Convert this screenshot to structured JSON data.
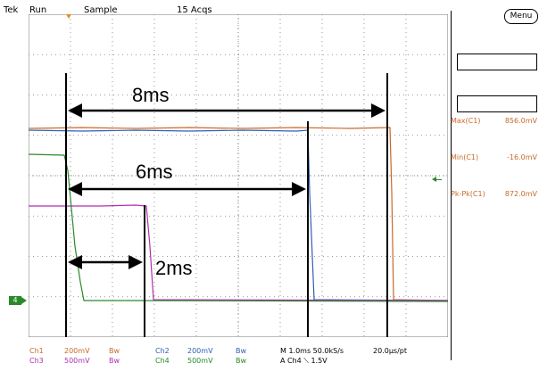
{
  "status_bar": {
    "brand": "Tek",
    "state": "Run",
    "mode": "Sample",
    "acqs": "15 Acqs"
  },
  "menu_label": "Menu",
  "measurements": [
    {
      "name": "Max(C1)",
      "value": "856.0mV"
    },
    {
      "name": "Min(C1)",
      "value": "-16.0mV"
    },
    {
      "name": "Pk-Pk(C1)",
      "value": "872.0mV"
    }
  ],
  "annotations": {
    "a8": "8ms",
    "a6": "6ms",
    "a2": "2ms"
  },
  "ch4_marker": "4",
  "bottom": {
    "ch1": "Ch1",
    "ch1_scale": "200mV",
    "ch1_bw": "Bw",
    "ch3": "Ch3",
    "ch3_scale": "500mV",
    "ch3_bw": "Bw",
    "ch2": "Ch2",
    "ch2_scale": "200mV",
    "ch2_bw": "Bw",
    "ch4": "Ch4",
    "ch4_scale": "500mV",
    "ch4_bw": "Bw",
    "timebase": "M 1.0ms 50.0kS/s",
    "pt": "20.0µs/pt",
    "trigger": "A  Ch4  ⟍  1.5V"
  },
  "colors": {
    "ch1": "#c8692a",
    "ch2": "#2f5fb3",
    "ch3": "#b02fb0",
    "ch4": "#2a8a2a",
    "grid": "#7a7a7a"
  }
}
